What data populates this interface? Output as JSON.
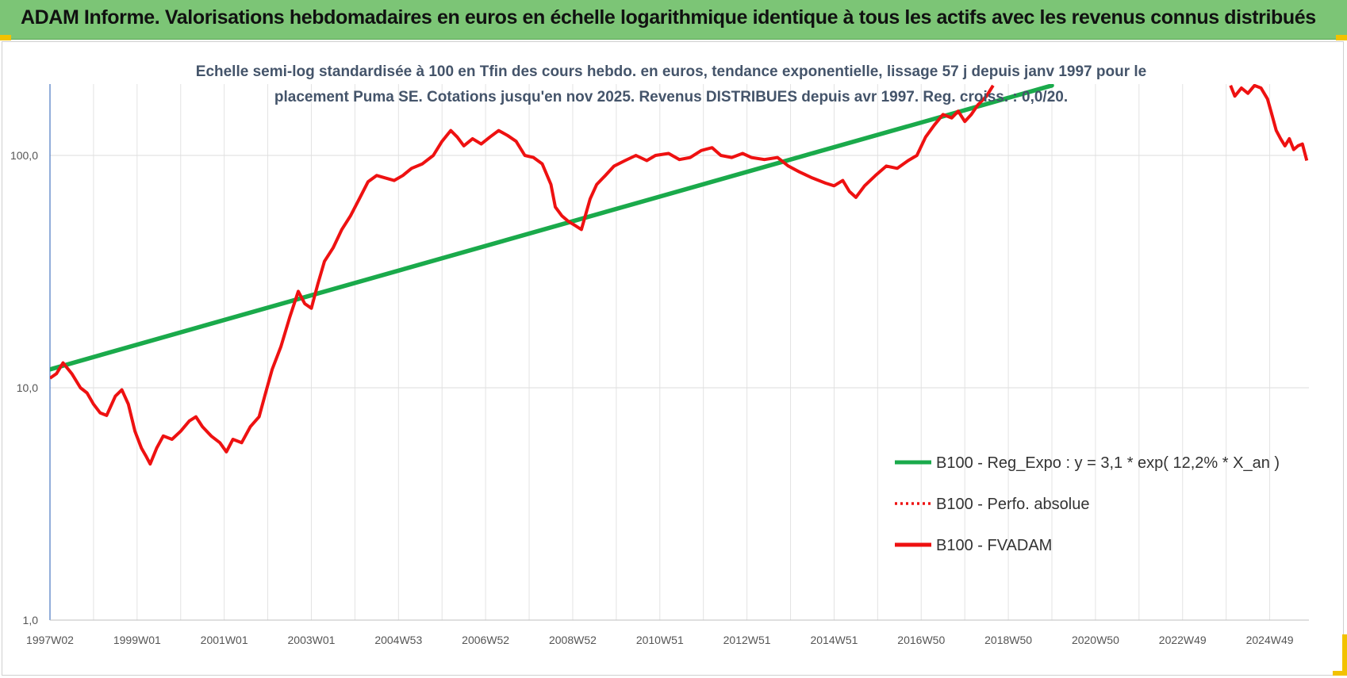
{
  "header": {
    "title": "ADAM Informe. Valorisations hebdomadaires en euros en échelle logarithmique identique à tous les actifs avec les revenus connus distribués"
  },
  "colors": {
    "banner": "#7cc576",
    "trend": "#1aaa4b",
    "fvadam": "#ee1111",
    "perfo": "#ee1111",
    "corner_marks": "#f2c200"
  },
  "chart_data": {
    "type": "line",
    "subtitle_line1": "Echelle semi-log standardisée à 100 en Tfin des cours hebdo. en euros, tendance exponentielle, lissage 57 j depuis janv 1997 pour le",
    "subtitle_line2": "placement Puma SE. Cotations jusqu'en nov 2025. Revenus DISTRIBUES depuis avr 1997. Reg. croiss. : 0,0/20.",
    "y_scale": "log",
    "ylim": [
      1,
      200
    ],
    "y_ticks": [
      {
        "value": 1,
        "label": "1,0"
      },
      {
        "value": 10,
        "label": "10,0"
      },
      {
        "value": 100,
        "label": "100,0"
      }
    ],
    "xlim": [
      1997.0,
      2025.9
    ],
    "x_ticks": [
      {
        "year": 1997.0,
        "label": "1997W02"
      },
      {
        "year": 1999.0,
        "label": "1999W01"
      },
      {
        "year": 2001.0,
        "label": "2001W01"
      },
      {
        "year": 2003.0,
        "label": "2003W01"
      },
      {
        "year": 2005.0,
        "label": "2004W53"
      },
      {
        "year": 2007.0,
        "label": "2006W52"
      },
      {
        "year": 2009.0,
        "label": "2008W52"
      },
      {
        "year": 2011.0,
        "label": "2010W51"
      },
      {
        "year": 2013.0,
        "label": "2012W51"
      },
      {
        "year": 2015.0,
        "label": "2014W51"
      },
      {
        "year": 2017.0,
        "label": "2016W50"
      },
      {
        "year": 2019.0,
        "label": "2018W50"
      },
      {
        "year": 2021.0,
        "label": "2020W50"
      },
      {
        "year": 2023.0,
        "label": "2022W49"
      },
      {
        "year": 2025.0,
        "label": "2024W49"
      }
    ],
    "grid": true,
    "legend_position": "bottom-right",
    "series": [
      {
        "name": "B100 - Reg_Expo : y = 3,1 * exp( 12,2% *  X_an )",
        "style": "thick solid",
        "color": "#1aaa4b",
        "points": [
          [
            1997.0,
            12.0
          ],
          [
            2020.0,
            200.0
          ]
        ]
      },
      {
        "name": "B100 - Perfo. absolue",
        "style": "dotted",
        "color": "#ee1111",
        "points": []
      },
      {
        "name": "B100 - FVADAM",
        "style": "thick solid",
        "color": "#ee1111",
        "points": [
          [
            1997.0,
            11.0
          ],
          [
            1997.15,
            11.5
          ],
          [
            1997.3,
            12.8
          ],
          [
            1997.5,
            11.5
          ],
          [
            1997.7,
            10.0
          ],
          [
            1997.85,
            9.5
          ],
          [
            1998.0,
            8.5
          ],
          [
            1998.15,
            7.8
          ],
          [
            1998.3,
            7.6
          ],
          [
            1998.5,
            9.2
          ],
          [
            1998.65,
            9.8
          ],
          [
            1998.8,
            8.5
          ],
          [
            1998.95,
            6.5
          ],
          [
            1999.1,
            5.5
          ],
          [
            1999.2,
            5.1
          ],
          [
            1999.3,
            4.7
          ],
          [
            1999.45,
            5.5
          ],
          [
            1999.6,
            6.2
          ],
          [
            1999.8,
            6.0
          ],
          [
            2000.0,
            6.5
          ],
          [
            2000.2,
            7.2
          ],
          [
            2000.35,
            7.5
          ],
          [
            2000.5,
            6.8
          ],
          [
            2000.7,
            6.2
          ],
          [
            2000.9,
            5.8
          ],
          [
            2001.05,
            5.3
          ],
          [
            2001.2,
            6.0
          ],
          [
            2001.4,
            5.8
          ],
          [
            2001.6,
            6.8
          ],
          [
            2001.8,
            7.5
          ],
          [
            2001.95,
            9.5
          ],
          [
            2002.1,
            12.0
          ],
          [
            2002.3,
            15.0
          ],
          [
            2002.5,
            20.0
          ],
          [
            2002.7,
            26.0
          ],
          [
            2002.85,
            23.0
          ],
          [
            2003.0,
            22.0
          ],
          [
            2003.15,
            28.0
          ],
          [
            2003.3,
            35.0
          ],
          [
            2003.5,
            40.0
          ],
          [
            2003.7,
            48.0
          ],
          [
            2003.9,
            55.0
          ],
          [
            2004.1,
            65.0
          ],
          [
            2004.3,
            77.0
          ],
          [
            2004.5,
            82.0
          ],
          [
            2004.7,
            80.0
          ],
          [
            2004.9,
            78.0
          ],
          [
            2005.1,
            82.0
          ],
          [
            2005.3,
            88.0
          ],
          [
            2005.55,
            92.0
          ],
          [
            2005.8,
            100.0
          ],
          [
            2006.0,
            115.0
          ],
          [
            2006.2,
            128.0
          ],
          [
            2006.35,
            120.0
          ],
          [
            2006.5,
            110.0
          ],
          [
            2006.7,
            118.0
          ],
          [
            2006.9,
            112.0
          ],
          [
            2007.1,
            120.0
          ],
          [
            2007.3,
            128.0
          ],
          [
            2007.5,
            122.0
          ],
          [
            2007.7,
            115.0
          ],
          [
            2007.9,
            100.0
          ],
          [
            2008.1,
            98.0
          ],
          [
            2008.3,
            92.0
          ],
          [
            2008.5,
            75.0
          ],
          [
            2008.6,
            60.0
          ],
          [
            2008.75,
            55.0
          ],
          [
            2008.9,
            52.0
          ],
          [
            2009.05,
            50.0
          ],
          [
            2009.2,
            48.0
          ],
          [
            2009.4,
            65.0
          ],
          [
            2009.55,
            75.0
          ],
          [
            2009.75,
            82.0
          ],
          [
            2009.95,
            90.0
          ],
          [
            2010.2,
            95.0
          ],
          [
            2010.45,
            100.0
          ],
          [
            2010.7,
            95.0
          ],
          [
            2010.9,
            100.0
          ],
          [
            2011.2,
            102.0
          ],
          [
            2011.45,
            96.0
          ],
          [
            2011.7,
            98.0
          ],
          [
            2011.95,
            105.0
          ],
          [
            2012.2,
            108.0
          ],
          [
            2012.4,
            100.0
          ],
          [
            2012.65,
            98.0
          ],
          [
            2012.9,
            102.0
          ],
          [
            2013.1,
            98.0
          ],
          [
            2013.4,
            96.0
          ],
          [
            2013.7,
            98.0
          ],
          [
            2013.95,
            90.0
          ],
          [
            2014.2,
            85.0
          ],
          [
            2014.5,
            80.0
          ],
          [
            2014.8,
            76.0
          ],
          [
            2015.0,
            74.0
          ],
          [
            2015.2,
            78.0
          ],
          [
            2015.35,
            70.0
          ],
          [
            2015.5,
            66.0
          ],
          [
            2015.7,
            74.0
          ],
          [
            2015.95,
            82.0
          ],
          [
            2016.2,
            90.0
          ],
          [
            2016.45,
            88.0
          ],
          [
            2016.7,
            95.0
          ],
          [
            2016.9,
            100.0
          ],
          [
            2017.1,
            120.0
          ],
          [
            2017.3,
            135.0
          ],
          [
            2017.5,
            150.0
          ],
          [
            2017.7,
            145.0
          ],
          [
            2017.85,
            155.0
          ],
          [
            2018.0,
            140.0
          ],
          [
            2018.15,
            150.0
          ],
          [
            2018.3,
            165.0
          ],
          [
            2018.5,
            180.0
          ],
          [
            2018.65,
            200.0
          ]
        ],
        "points_after_gap": [
          [
            2024.1,
            200.0
          ],
          [
            2024.2,
            180.0
          ],
          [
            2024.35,
            195.0
          ],
          [
            2024.5,
            185.0
          ],
          [
            2024.65,
            200.0
          ],
          [
            2024.8,
            195.0
          ],
          [
            2024.95,
            175.0
          ],
          [
            2025.05,
            150.0
          ],
          [
            2025.15,
            128.0
          ],
          [
            2025.25,
            118.0
          ],
          [
            2025.35,
            110.0
          ],
          [
            2025.45,
            118.0
          ],
          [
            2025.55,
            106.0
          ],
          [
            2025.65,
            110.0
          ],
          [
            2025.75,
            112.0
          ],
          [
            2025.85,
            95.0
          ]
        ]
      }
    ]
  }
}
